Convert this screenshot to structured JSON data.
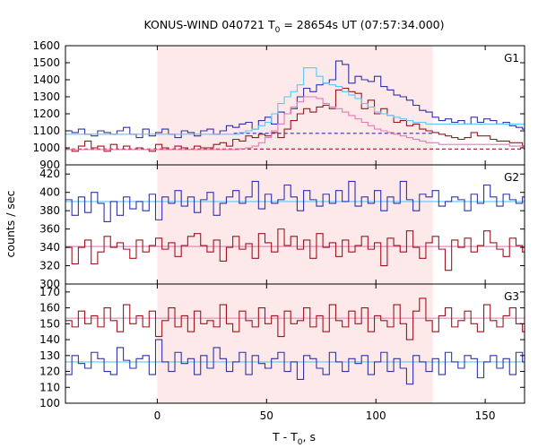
{
  "title": {
    "prefix": "KONUS-WIND 040721 T",
    "sub": "0",
    "suffix": " = 28654s UT (07:57:34.000)"
  },
  "xlabel": {
    "prefix": "T - T",
    "sub": "0",
    "suffix": ", s"
  },
  "ylabel": "counts / sec",
  "colors": {
    "blue": "#2e34a8",
    "red": "#a0141e",
    "cyan": "#5bc8f5",
    "pink": "#e879b8",
    "shade": "#fde8ea"
  },
  "chart_data": {
    "type": "line",
    "x_range": [
      -42,
      168
    ],
    "x_ticks": [
      0,
      50,
      100,
      150
    ],
    "bin_width": 2.944,
    "shaded_interval": [
      0,
      126
    ],
    "panels": [
      {
        "label": "G1",
        "y_range": [
          900,
          1600
        ],
        "y_ticks": [
          900,
          1000,
          1100,
          1200,
          1300,
          1400,
          1500,
          1600
        ],
        "background_levels": [
          {
            "color": "blue",
            "value": 1085,
            "from": 35,
            "to": 126,
            "style": "dashed"
          },
          {
            "color": "red",
            "value": 993,
            "from": -42,
            "to": 168,
            "style": "dashed"
          }
        ],
        "series": [
          {
            "color": "blue",
            "step": true,
            "values": [
              1100,
              1090,
              1110,
              1080,
              1070,
              1100,
              1090,
              1080,
              1100,
              1120,
              1080,
              1060,
              1110,
              1070,
              1090,
              1110,
              1080,
              1060,
              1100,
              1090,
              1070,
              1100,
              1110,
              1080,
              1100,
              1130,
              1120,
              1140,
              1150,
              1110,
              1160,
              1180,
              1140,
              1210,
              1200,
              1230,
              1300,
              1350,
              1330,
              1370,
              1380,
              1400,
              1510,
              1490,
              1380,
              1420,
              1400,
              1390,
              1420,
              1360,
              1340,
              1310,
              1300,
              1280,
              1250,
              1220,
              1210,
              1180,
              1160,
              1170,
              1150,
              1160,
              1140,
              1180,
              1150,
              1170,
              1160,
              1140,
              1150,
              1130,
              1120,
              1110,
              1140,
              1130,
              1100,
              1110,
              1130,
              1120,
              1150,
              1130,
              1140,
              1160,
              1150,
              1120,
              1110,
              1170,
              1140,
              1160,
              1150,
              1130,
              1120,
              1140,
              1150,
              1180,
              1210,
              1150,
              1170,
              1180,
              1190,
              1160,
              1240,
              1230
            ]
          },
          {
            "color": "red",
            "step": true,
            "values": [
              990,
              980,
              1010,
              1040,
              1000,
              1010,
              980,
              1020,
              990,
              1010,
              990,
              1000,
              990,
              980,
              1020,
              1000,
              990,
              1010,
              1000,
              990,
              1010,
              1000,
              1000,
              1020,
              1030,
              1010,
              1050,
              1040,
              1070,
              1060,
              1080,
              1070,
              1090,
              1060,
              1110,
              1160,
              1200,
              1230,
              1210,
              1240,
              1250,
              1230,
              1340,
              1350,
              1330,
              1320,
              1230,
              1280,
              1200,
              1230,
              1190,
              1150,
              1160,
              1130,
              1140,
              1110,
              1100,
              1090,
              1080,
              1070,
              1060,
              1050,
              1060,
              1090,
              1070,
              1070,
              1050,
              1040,
              1040,
              1030,
              1030,
              1010,
              1010,
              1000,
              990,
              1020,
              1000,
              1010,
              990,
              1000,
              1000,
              1020,
              1010,
              1030,
              990,
              1010,
              990,
              1020,
              1010,
              1000,
              1040,
              1020,
              1040,
              1050,
              1020,
              1050,
              1040,
              1070,
              1060,
              1060,
              1080,
              1060
            ]
          },
          {
            "color": "cyan",
            "step": true,
            "values": [
              1080,
              1080,
              1080,
              1080,
              1080,
              1080,
              1080,
              1080,
              1080,
              1080,
              1080,
              1080,
              1080,
              1080,
              1080,
              1080,
              1080,
              1080,
              1080,
              1080,
              1080,
              1080,
              1080,
              1080,
              1080,
              1080,
              1080,
              1090,
              1100,
              1110,
              1130,
              1150,
              1200,
              1260,
              1300,
              1330,
              1370,
              1470,
              1470,
              1420,
              1380,
              1370,
              1360,
              1330,
              1310,
              1290,
              1260,
              1240,
              1210,
              1200,
              1190,
              1180,
              1170,
              1160,
              1150,
              1150,
              1140,
              1140,
              1140,
              1140,
              1140,
              1140,
              1140,
              1140,
              1140,
              1140,
              1140,
              1140,
              1140,
              1140,
              1140,
              1140,
              1140,
              1120,
              1100,
              1090,
              1090,
              1090,
              1090,
              1090,
              1090,
              1090,
              1090,
              1090,
              1090,
              1090,
              1090,
              1090,
              1090,
              1090,
              1090,
              1090,
              1090,
              1090,
              1090,
              1090,
              1090,
              1090,
              1090,
              1090,
              1090,
              1090
            ]
          },
          {
            "color": "pink",
            "step": true,
            "values": [
              990,
              990,
              990,
              990,
              990,
              990,
              990,
              990,
              990,
              990,
              990,
              990,
              990,
              990,
              990,
              990,
              990,
              990,
              990,
              990,
              990,
              990,
              990,
              990,
              990,
              990,
              990,
              995,
              1000,
              1010,
              1030,
              1060,
              1100,
              1140,
              1200,
              1240,
              1270,
              1300,
              1300,
              1290,
              1260,
              1240,
              1230,
              1210,
              1190,
              1170,
              1150,
              1130,
              1110,
              1100,
              1090,
              1080,
              1070,
              1060,
              1050,
              1040,
              1030,
              1030,
              1020,
              1020,
              1020,
              1020,
              1020,
              1020,
              1020,
              1020,
              1020,
              1020,
              1020,
              1010,
              1010,
              1000,
              1000,
              990,
              990,
              990,
              990,
              990,
              990,
              990,
              990,
              990,
              990,
              990,
              990,
              990,
              990,
              990,
              990,
              990,
              990,
              990,
              990,
              990,
              990,
              990,
              990,
              990,
              990,
              990,
              990,
              990
            ]
          }
        ]
      },
      {
        "label": "G2",
        "y_range": [
          300,
          430
        ],
        "y_ticks": [
          300,
          320,
          340,
          360,
          380,
          400,
          420
        ],
        "fit_lines": [
          {
            "color": "cyan",
            "value": 390
          },
          {
            "color": "pink",
            "value": 341
          }
        ],
        "series": [
          {
            "color": "blue",
            "step": true,
            "values": [
              392,
              375,
              395,
              378,
              400,
              388,
              368,
              390,
              375,
              395,
              382,
              390,
              380,
              398,
              370,
              395,
              388,
              402,
              385,
              395,
              378,
              392,
              400,
              375,
              388,
              395,
              402,
              388,
              395,
              412,
              382,
              398,
              388,
              392,
              408,
              395,
              380,
              402,
              392,
              385,
              398,
              388,
              402,
              390,
              412,
              385,
              395,
              388,
              402,
              380,
              395,
              388,
              412,
              392,
              380,
              398,
              395,
              402,
              385,
              390,
              395,
              392,
              380,
              398,
              388,
              408,
              395,
              385,
              398,
              392,
              388,
              395,
              402,
              390,
              398,
              395,
              392,
              402,
              385,
              390,
              398,
              360,
              378,
              395,
              402,
              392,
              385,
              400,
              370,
              395,
              388,
              360,
              392,
              395,
              372,
              400,
              390,
              382,
              395,
              398,
              405,
              392
            ]
          },
          {
            "color": "red",
            "step": true,
            "values": [
              340,
              322,
              340,
              348,
              322,
              335,
              352,
              340,
              345,
              338,
              328,
              348,
              335,
              342,
              350,
              338,
              345,
              330,
              342,
              352,
              355,
              342,
              335,
              348,
              325,
              340,
              352,
              338,
              344,
              328,
              355,
              345,
              335,
              360,
              342,
              352,
              338,
              348,
              328,
              355,
              340,
              345,
              330,
              348,
              335,
              342,
              352,
              338,
              345,
              320,
              350,
              342,
              335,
              358,
              340,
              328,
              345,
              352,
              338,
              315,
              348,
              340,
              350,
              335,
              342,
              358,
              345,
              338,
              330,
              350,
              342,
              335,
              348,
              340,
              355,
              338,
              345,
              328,
              352,
              340,
              345,
              338,
              350,
              342,
              335,
              348,
              340,
              352,
              338,
              345,
              358,
              342,
              335,
              348,
              340,
              345,
              352,
              338,
              360,
              342,
              340,
              345
            ]
          }
        ]
      },
      {
        "label": "G3",
        "y_range": [
          100,
          175
        ],
        "y_ticks": [
          100,
          110,
          120,
          130,
          140,
          150,
          160,
          170
        ],
        "fit_lines": [
          {
            "color": "pink",
            "value": 153.5
          },
          {
            "color": "cyan",
            "value": 126
          }
        ],
        "series": [
          {
            "color": "red",
            "step": true,
            "values": [
              152,
              148,
              158,
              150,
              155,
              148,
              160,
              152,
              145,
              162,
              150,
              155,
              148,
              158,
              142,
              152,
              160,
              148,
              155,
              145,
              158,
              150,
              152,
              148,
              162,
              150,
              145,
              158,
              152,
              148,
              160,
              150,
              155,
              142,
              158,
              150,
              152,
              160,
              148,
              155,
              145,
              162,
              152,
              148,
              158,
              150,
              160,
              145,
              155,
              152,
              148,
              162,
              150,
              140,
              158,
              166,
              152,
              145,
              155,
              160,
              148,
              152,
              158,
              150,
              145,
              162,
              152,
              148,
              155,
              160,
              150,
              145,
              158,
              152,
              148,
              162,
              150,
              155,
              145,
              160,
              152,
              148,
              158,
              150,
              142,
              155,
              152,
              158,
              148,
              160,
              150,
              155,
              145,
              158,
              152,
              148,
              155,
              150,
              152,
              158,
              150,
              153
            ]
          },
          {
            "color": "blue",
            "step": true,
            "values": [
              118,
              130,
              125,
              122,
              132,
              128,
              120,
              118,
              135,
              127,
              122,
              128,
              130,
              118,
              140,
              126,
              120,
              132,
              125,
              128,
              118,
              130,
              122,
              135,
              128,
              120,
              126,
              132,
              118,
              130,
              125,
              122,
              128,
              132,
              120,
              126,
              115,
              130,
              128,
              122,
              118,
              132,
              126,
              120,
              128,
              125,
              130,
              118,
              126,
              132,
              120,
              128,
              122,
              112,
              130,
              126,
              120,
              128,
              118,
              132,
              126,
              122,
              130,
              128,
              116,
              126,
              130,
              122,
              128,
              118,
              132,
              126,
              120,
              128,
              125,
              130,
              118,
              126,
              108,
              130,
              128,
              122,
              120,
              128,
              132,
              126,
              120,
              112,
              128,
              132,
              126,
              120,
              128,
              118,
              130,
              126,
              122,
              128,
              130,
              124,
              128,
              126
            ]
          }
        ]
      }
    ]
  }
}
